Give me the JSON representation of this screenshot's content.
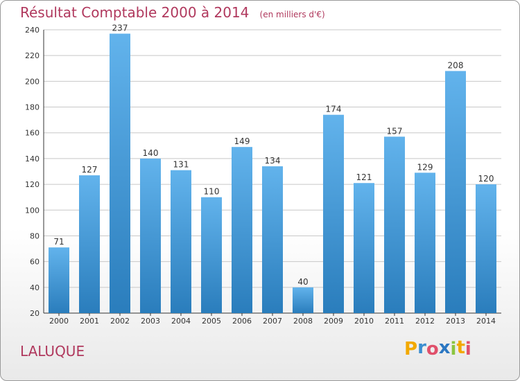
{
  "title": "Résultat Comptable 2000 à 2014",
  "subtitle": "(en milliers d'€)",
  "commune": "LALUQUE",
  "brand": {
    "letters": [
      "P",
      "r",
      "o",
      "x",
      "i",
      "t",
      "i"
    ],
    "colors": [
      "#f2a900",
      "#3b8ed0",
      "#e0506b",
      "#2b77c2",
      "#8bc540",
      "#f2a900",
      "#e0506b"
    ]
  },
  "colors": {
    "bar_top": "#62b3ec",
    "bar_bottom": "#2a7dbc",
    "title": "#b0385d",
    "grid": "#c8c8c8"
  },
  "chart_data": {
    "type": "bar",
    "title": "Résultat Comptable 2000 à 2014",
    "subtitle": "(en milliers d'€)",
    "categories": [
      "2000",
      "2001",
      "2002",
      "2003",
      "2004",
      "2005",
      "2006",
      "2007",
      "2008",
      "2009",
      "2010",
      "2011",
      "2012",
      "2013",
      "2014"
    ],
    "values": [
      71,
      127,
      237,
      140,
      131,
      110,
      149,
      134,
      40,
      174,
      121,
      157,
      129,
      208,
      120
    ],
    "data_labels": [
      "71",
      "127",
      "237",
      "140",
      "131",
      "110",
      "149",
      "134",
      "40",
      "174",
      "121",
      "157",
      "129",
      "208",
      "120"
    ],
    "ylim": [
      20,
      240
    ],
    "yticks": [
      20,
      40,
      60,
      80,
      100,
      120,
      140,
      160,
      180,
      200,
      220,
      240
    ],
    "grid": true,
    "xlabel": "",
    "ylabel": ""
  }
}
